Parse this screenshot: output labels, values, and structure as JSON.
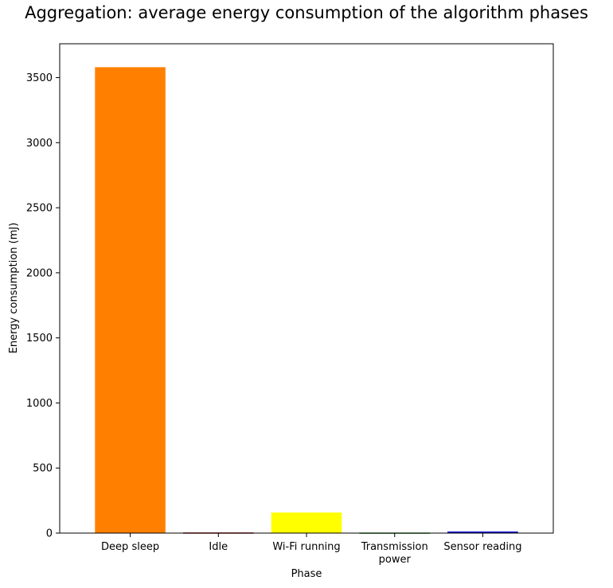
{
  "chart_data": {
    "type": "bar",
    "title": "Aggregation: average energy consumption of the algorithm phases",
    "xlabel": "Phase",
    "ylabel": "Energy consumption (mJ)",
    "categories": [
      [
        "Deep sleep"
      ],
      [
        "Idle"
      ],
      [
        "Wi-Fi running"
      ],
      [
        "Transmission",
        "power"
      ],
      [
        "Sensor reading"
      ]
    ],
    "values": [
      3580,
      5,
      158,
      4,
      12
    ],
    "colors": [
      "#ff7f00",
      "#8b0000",
      "#ffff00",
      "#228b22",
      "#0000cd"
    ],
    "ylim": [
      0,
      3760
    ],
    "yticks": [
      0,
      500,
      1000,
      1500,
      2000,
      2500,
      3000,
      3500
    ],
    "grid": false,
    "legend": "none"
  }
}
